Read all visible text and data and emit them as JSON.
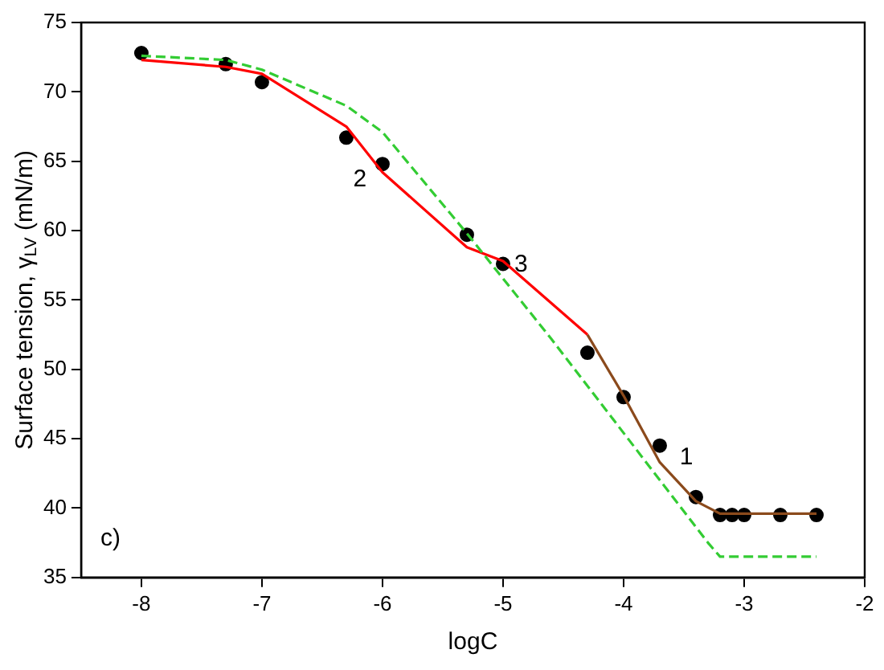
{
  "chart_data": {
    "type": "line",
    "xlabel": "logC",
    "ylabel": "Surface tension, γ$_{LV}$ (mN/m)",
    "xlim": [
      -8.5,
      -2
    ],
    "xticks": [
      -8,
      -7,
      -6,
      -5,
      -4,
      -3,
      -2
    ],
    "ylim": [
      35,
      75
    ],
    "yticks": [
      35,
      40,
      45,
      50,
      55,
      60,
      65,
      70,
      75
    ],
    "grid": false,
    "legend": false,
    "series": [
      {
        "type": "line",
        "name": "3",
        "marker": "none",
        "color": "#33cc33",
        "line_style": "dashed",
        "x": [
          -8,
          -7.3,
          -7,
          -6.3,
          -6,
          -5.3,
          -4.6,
          -3.3,
          -3.2,
          -2.4
        ],
        "values": [
          72.6,
          72.3,
          71.6,
          69.0,
          67.1,
          59.8,
          52.2,
          37.5,
          36.5,
          36.5
        ]
      },
      {
        "name": "2",
        "marker": "none",
        "color": "#ff0000",
        "x": [
          -8,
          -7.3,
          -7,
          -6.3,
          -6,
          -5.3,
          -5,
          -4.3
        ],
        "values": [
          72.3,
          71.8,
          71.3,
          67.5,
          64.2,
          58.8,
          57.8,
          52.5
        ]
      },
      {
        "type": "line",
        "name": "1",
        "marker": "none",
        "color": "#8b4a1c",
        "x": [
          -4.3,
          -4,
          -3.7,
          -3.4,
          -3.2,
          -2.4
        ],
        "values": [
          52.5,
          48.1,
          43.3,
          40.5,
          39.6,
          39.6
        ]
      },
      {
        "type": "scatter",
        "marker": "circle",
        "color": "#000000",
        "x": [
          -8,
          -7.3,
          -7,
          -6.3,
          -6,
          -5.3,
          -5,
          -4.3,
          -4,
          -3.7,
          -3.4,
          -3.2,
          -3.1,
          -3,
          -2.7,
          -2.4
        ],
        "values": [
          72.8,
          72.0,
          70.7,
          66.7,
          64.8,
          59.7,
          57.6,
          51.2,
          48.0,
          44.5,
          40.8,
          39.5,
          39.5,
          39.5,
          39.5,
          39.5
        ]
      }
    ],
    "annotations": [
      "c)"
    ]
  }
}
